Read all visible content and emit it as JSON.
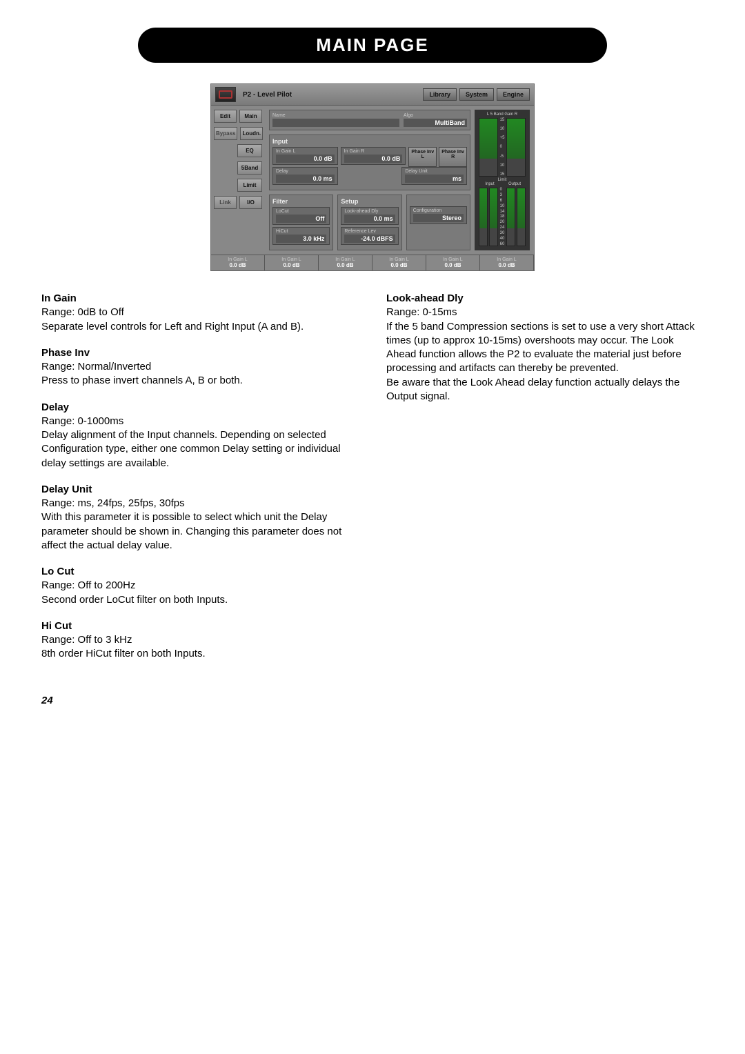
{
  "page_title": "MAIN PAGE",
  "page_number": "24",
  "screenshot": {
    "title": "P2 - Level Pilot",
    "top_buttons": [
      "Library",
      "System",
      "Engine"
    ],
    "left_col1": [
      "Edit",
      "Bypass",
      "Link"
    ],
    "left_col2": [
      "Main",
      "Loudn.",
      "EQ",
      "5Band",
      "Limit",
      "I/O"
    ],
    "name_label": "Name",
    "algo_label": "Algo",
    "algo_value": "MultiBand",
    "input": {
      "title": "Input",
      "in_gain_l": {
        "label": "In Gain L",
        "value": "0.0 dB"
      },
      "in_gain_r": {
        "label": "In Gain R",
        "value": "0.0 dB"
      },
      "phase_inv_l": "Phase Inv L",
      "phase_inv_r": "Phase Inv R",
      "delay": {
        "label": "Delay",
        "value": "0.0 ms"
      },
      "delay_unit": {
        "label": "Delay Unit",
        "value": "ms"
      }
    },
    "filter": {
      "title": "Filter",
      "locut": {
        "label": "LoCut",
        "value": "Off"
      },
      "hicut": {
        "label": "HiCut",
        "value": "3.0 kHz"
      }
    },
    "setup": {
      "title": "Setup",
      "lookahead": {
        "label": "Look-ahead Dly",
        "value": "0.0 ms"
      },
      "reflev": {
        "label": "Reference Lev",
        "value": "-24.0 dBFS"
      },
      "config": {
        "label": "Configuration",
        "value": "Stereo"
      }
    },
    "meters": {
      "label_top": "L   5 Band Gain   R",
      "label_limit": "Limit",
      "label_input": "Input",
      "label_output": "Output",
      "scale_gain": [
        "15",
        "10",
        "+5",
        "0",
        "-5",
        "10",
        "15"
      ],
      "scale_io": [
        "0",
        "3",
        "6",
        "10",
        "14",
        "18",
        "20",
        "24",
        "30",
        "40",
        "60"
      ]
    },
    "bottom_cells": [
      {
        "label": "In Gain L",
        "value": "0.0 dB"
      },
      {
        "label": "In Gain L",
        "value": "0.0 dB"
      },
      {
        "label": "In Gain L",
        "value": "0.0 dB"
      },
      {
        "label": "In Gain L",
        "value": "0.0 dB"
      },
      {
        "label": "In Gain L",
        "value": "0.0 dB"
      },
      {
        "label": "In Gain L",
        "value": "0.0 dB"
      }
    ]
  },
  "left_params": [
    {
      "title": "In Gain",
      "body": "Range: 0dB to Off\nSeparate level controls for Left and Right Input (A and B)."
    },
    {
      "title": "Phase Inv",
      "body": "Range: Normal/Inverted\nPress to phase invert channels A, B or both."
    },
    {
      "title": "Delay",
      "body": "Range: 0-1000ms\nDelay alignment of the Input channels. Depending on selected Configuration type, either one common Delay setting or individual delay settings are available."
    },
    {
      "title": "Delay Unit",
      "body": "Range: ms, 24fps, 25fps, 30fps\nWith this parameter it is possible to select which unit the Delay parameter should be shown in. Changing this parameter does not affect the actual delay value."
    },
    {
      "title": "Lo Cut",
      "body": "Range: Off to 200Hz\nSecond order LoCut filter on both Inputs."
    },
    {
      "title": "Hi Cut",
      "body": "Range: Off to 3 kHz\n8th order HiCut filter on both Inputs."
    }
  ],
  "right_params": [
    {
      "title": "Look-ahead Dly",
      "body": "Range: 0-15ms\nIf the 5 band Compression sections is set to use a very short Attack times (up to approx 10-15ms) overshoots may occur. The Look Ahead function allows the P2 to evaluate the material just before processing and artifacts can thereby be prevented.\nBe aware that the Look Ahead delay function actually delays the Output signal."
    }
  ]
}
